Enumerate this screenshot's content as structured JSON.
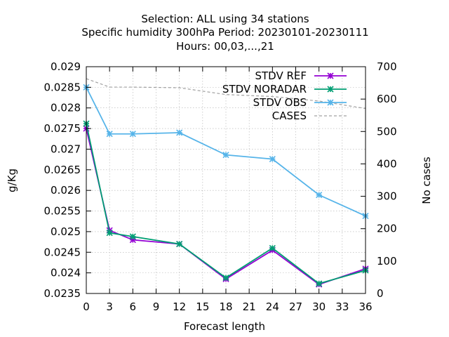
{
  "chart_data": {
    "type": "line",
    "title_lines": [
      "Selection: ALL using    34 stations",
      "Specific humidity 300hPa   Period: 20230101-20230111",
      "Hours:  00,03,...,21"
    ],
    "xlabel": "Forecast length",
    "ylabel": "g/Kg",
    "y2label": "No cases",
    "xlim": [
      0,
      36
    ],
    "ylim": [
      0.0235,
      0.029
    ],
    "y2lim": [
      0,
      700
    ],
    "xticks": [
      0,
      3,
      6,
      9,
      12,
      15,
      18,
      21,
      24,
      27,
      30,
      33,
      36
    ],
    "yticks": [
      "0.0235",
      "0.024",
      "0.0245",
      "0.025",
      "0.0255",
      "0.026",
      "0.0265",
      "0.027",
      "0.0275",
      "0.028",
      "0.0285",
      "0.029"
    ],
    "y2ticks": [
      0,
      100,
      200,
      300,
      400,
      500,
      600,
      700
    ],
    "grid": true,
    "legend_position": "top-right",
    "series": [
      {
        "name": "STDV REF",
        "color": "#9400d3",
        "axis": "y",
        "x": [
          0,
          3,
          6,
          12,
          18,
          24,
          30,
          36
        ],
        "values": [
          0.0275,
          0.02503,
          0.0248,
          0.0247,
          0.02385,
          0.02455,
          0.02372,
          0.0241
        ]
      },
      {
        "name": "STDV NORADAR",
        "color": "#009e73",
        "axis": "y",
        "x": [
          0,
          3,
          6,
          12,
          18,
          24,
          30,
          36
        ],
        "values": [
          0.02762,
          0.02497,
          0.02488,
          0.0247,
          0.02388,
          0.0246,
          0.02374,
          0.02406
        ]
      },
      {
        "name": "STDV OBS",
        "color": "#56b4e9",
        "axis": "y",
        "x": [
          0,
          3,
          6,
          12,
          18,
          24,
          30,
          36
        ],
        "values": [
          0.0285,
          0.02737,
          0.02737,
          0.0274,
          0.02686,
          0.02676,
          0.02589,
          0.02538
        ]
      },
      {
        "name": "CASES",
        "color": "#a0a0a0",
        "axis": "y2",
        "dashed": true,
        "x": [
          0,
          3,
          6,
          12,
          18,
          24,
          30,
          36
        ],
        "values": [
          663,
          637,
          637,
          635,
          614,
          608,
          594,
          571
        ]
      }
    ]
  }
}
